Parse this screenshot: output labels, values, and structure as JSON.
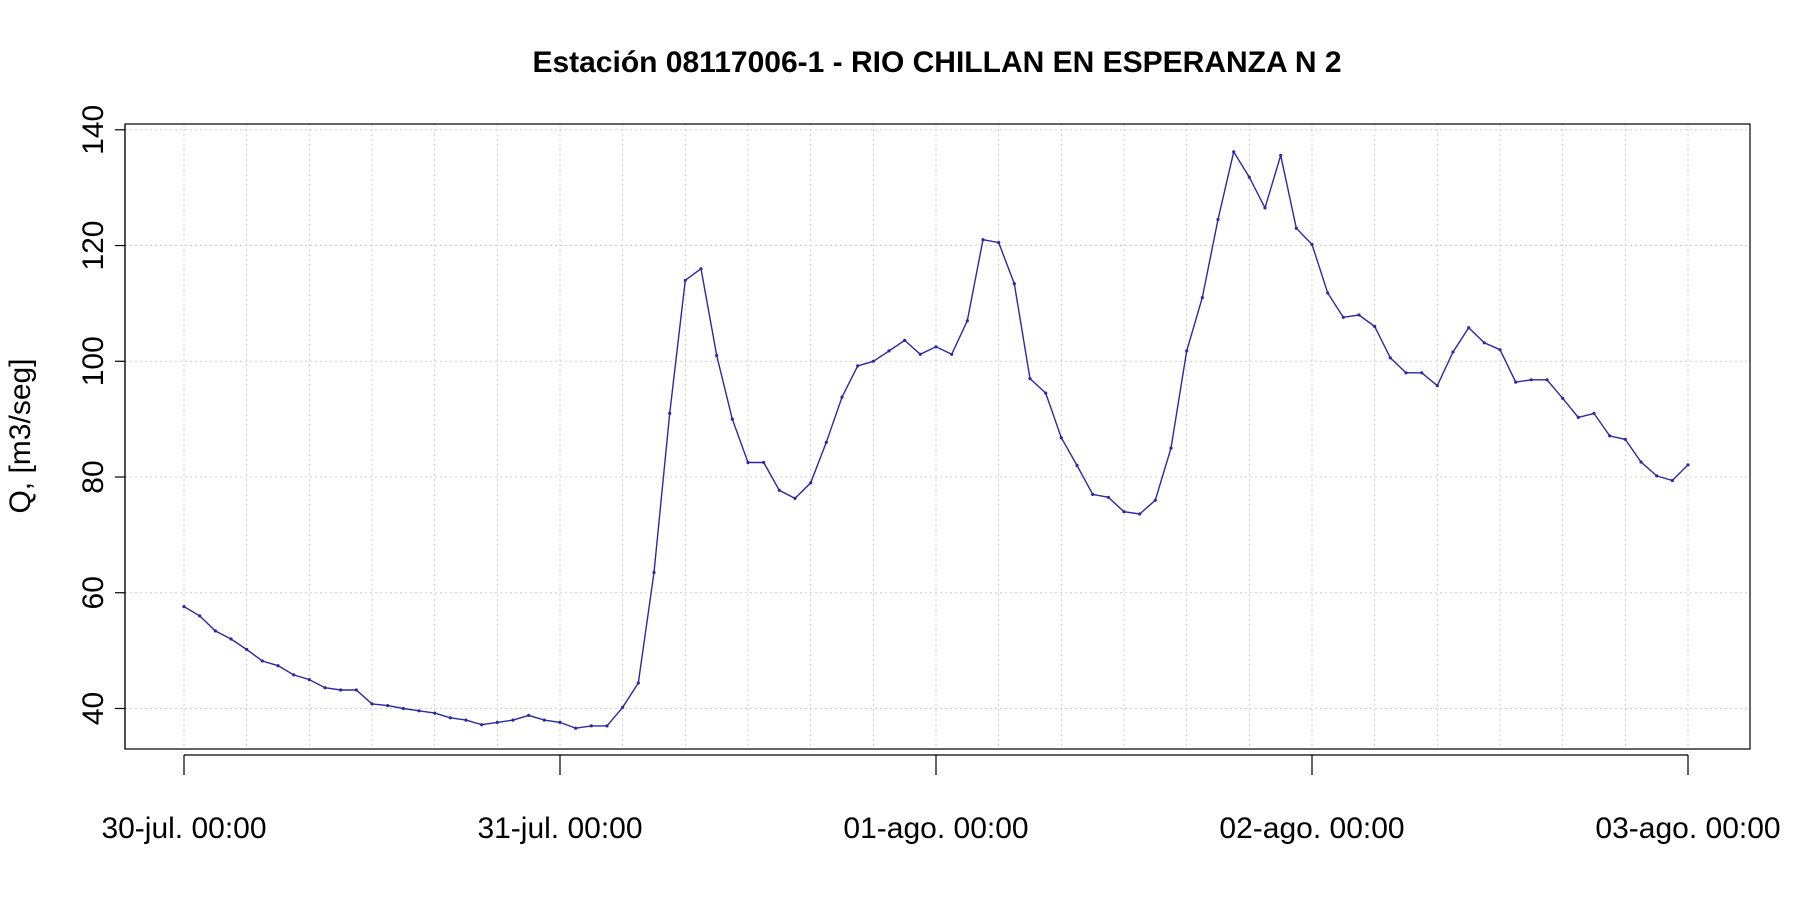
{
  "chart_data": {
    "type": "line",
    "title": "Estación 08117006-1 - RIO CHILLAN EN ESPERANZA N 2",
    "xlabel": "",
    "ylabel": "Q, [m3/seg]",
    "ylim": [
      33,
      141
    ],
    "yticks": [
      40,
      60,
      80,
      100,
      120,
      140
    ],
    "xlim": [
      "30-jul. 00:00",
      "03-ago. 00:00"
    ],
    "xticks": [
      {
        "hours": 0,
        "label": "30-jul. 00:00"
      },
      {
        "hours": 24,
        "label": "31-jul. 00:00"
      },
      {
        "hours": 48,
        "label": "01-ago. 00:00"
      },
      {
        "hours": 72,
        "label": "02-ago. 00:00"
      },
      {
        "hours": 96,
        "label": "03-ago. 00:00"
      }
    ],
    "grid": true,
    "color": "#2a2aa6",
    "series": [
      {
        "x": [
          0,
          1,
          2,
          3,
          4,
          5,
          6,
          7,
          8,
          9,
          10,
          11,
          12,
          13,
          14,
          15,
          16,
          17,
          18,
          19,
          20,
          21,
          22,
          23,
          24,
          25,
          26,
          27,
          28,
          29,
          30,
          31,
          32,
          33,
          34,
          35,
          36,
          37,
          38,
          39,
          40,
          41,
          42,
          43,
          44,
          45,
          46,
          47,
          48,
          49,
          50,
          51,
          52,
          53,
          54,
          55,
          56,
          57,
          58,
          59,
          60,
          61,
          62,
          63,
          64,
          65,
          66,
          67,
          68,
          69,
          70,
          71,
          72,
          73,
          74,
          75,
          76,
          77,
          78,
          79,
          80,
          81,
          82,
          83,
          84,
          85,
          86,
          87,
          88,
          89,
          90,
          91,
          92,
          93,
          94,
          95,
          96
        ],
        "values": [
          57.6,
          56.0,
          53.4,
          52.0,
          50.2,
          48.2,
          47.4,
          45.8,
          45.0,
          43.6,
          43.2,
          43.2,
          40.8,
          40.5,
          40.0,
          39.6,
          39.2,
          38.4,
          38.0,
          37.2,
          37.6,
          38.0,
          38.8,
          38.0,
          37.6,
          36.6,
          37.0,
          37.0,
          40.2,
          44.4,
          63.5,
          91.0,
          114.0,
          116.0,
          101.0,
          90.0,
          82.5,
          82.5,
          77.7,
          76.3,
          79.0,
          86.0,
          93.8,
          99.2,
          100.0,
          101.8,
          103.6,
          101.2,
          102.5,
          101.2,
          107.0,
          121.0,
          120.5,
          113.4,
          97.0,
          94.5,
          86.8,
          82.0,
          77.0,
          76.5,
          74.0,
          73.6,
          76.0,
          85.0,
          101.8,
          111.0,
          124.5,
          136.2,
          131.8,
          126.5,
          135.6,
          123.0,
          120.2,
          111.8,
          107.6,
          108.0,
          106.0,
          100.6,
          98.0,
          98.0,
          95.8,
          101.6,
          105.8,
          103.2,
          102.0,
          96.4,
          96.8,
          96.8,
          93.6,
          90.3,
          91.0,
          87.1,
          86.5,
          82.6,
          80.2,
          79.4,
          82.1
        ]
      }
    ]
  }
}
